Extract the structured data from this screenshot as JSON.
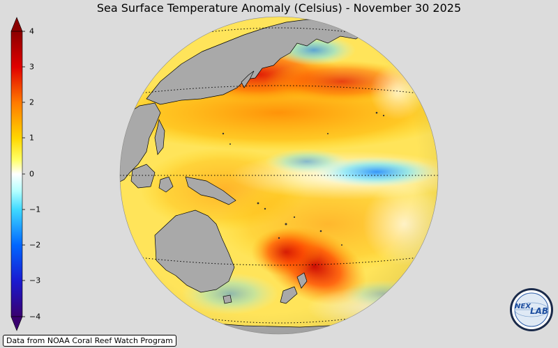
{
  "title": "Sea Surface Temperature Anomaly (Celsius) - November 30 2025",
  "colorbar": {
    "ticks": [
      "4",
      "3",
      "2",
      "1",
      "0",
      "−1",
      "−2",
      "−3",
      "−4"
    ],
    "min": -4,
    "max": 4
  },
  "footer": "Data from NOAA Coral Reef Watch Program",
  "logo": {
    "text_a": "NEX",
    "text_b": "LAB"
  },
  "colors": {
    "background": "#dcdcdc",
    "land": "#a9a9a9",
    "hot": "#d40000",
    "warm": "#ff8c00",
    "mild": "#ffe84a",
    "cool": "#8ff0ff",
    "cold": "#1b6cff"
  }
}
